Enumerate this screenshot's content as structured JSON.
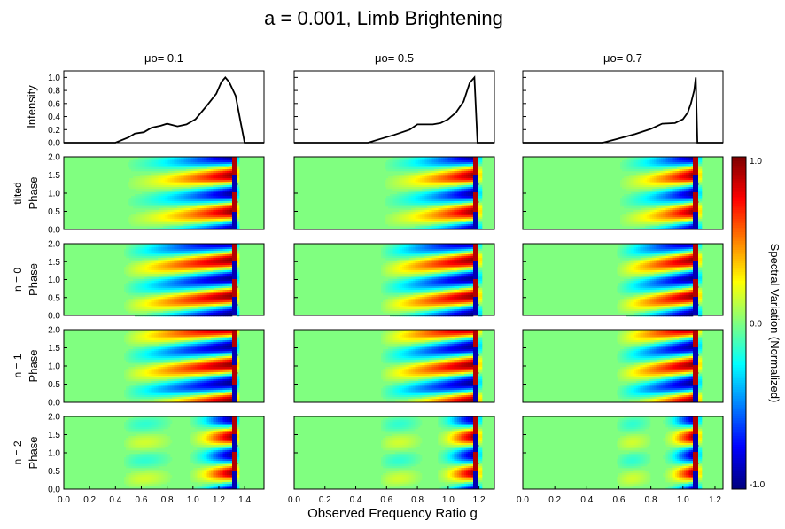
{
  "chart_data": {
    "type": "heatmap",
    "title": "a = 0.001, Limb Brightening",
    "xlabel": "Observed Frequency Ratio g",
    "colorbar": {
      "label": "Spectral Variation (Normalized)",
      "ticks": [
        "1.0",
        "0.0",
        "-1.0"
      ],
      "colormap": "jet",
      "range": [
        -1.0,
        1.0
      ]
    },
    "columns": [
      {
        "title": "μo= 0.1",
        "xlim": [
          0.0,
          1.55
        ],
        "xticks": [
          "0.0",
          "0.2",
          "0.4",
          "0.6",
          "0.8",
          "1.0",
          "1.2",
          "1.4"
        ],
        "intensity": [
          [
            0.0,
            0.0
          ],
          [
            0.4,
            0.0
          ],
          [
            0.5,
            0.08
          ],
          [
            0.55,
            0.14
          ],
          [
            0.62,
            0.16
          ],
          [
            0.68,
            0.23
          ],
          [
            0.75,
            0.26
          ],
          [
            0.8,
            0.29
          ],
          [
            0.88,
            0.25
          ],
          [
            0.95,
            0.28
          ],
          [
            1.02,
            0.36
          ],
          [
            1.1,
            0.55
          ],
          [
            1.18,
            0.75
          ],
          [
            1.22,
            0.93
          ],
          [
            1.25,
            1.0
          ],
          [
            1.28,
            0.93
          ],
          [
            1.33,
            0.72
          ],
          [
            1.37,
            0.3
          ],
          [
            1.4,
            0.0
          ],
          [
            1.55,
            0.0
          ]
        ],
        "edge": 1.32,
        "start": 0.45
      },
      {
        "title": "μo= 0.5",
        "xlim": [
          0.0,
          1.3
        ],
        "xticks": [
          "0.0",
          "0.2",
          "0.4",
          "0.6",
          "0.8",
          "1.0",
          "1.2"
        ],
        "intensity": [
          [
            0.0,
            0.0
          ],
          [
            0.48,
            0.0
          ],
          [
            0.55,
            0.05
          ],
          [
            0.65,
            0.12
          ],
          [
            0.75,
            0.2
          ],
          [
            0.8,
            0.28
          ],
          [
            0.9,
            0.28
          ],
          [
            0.95,
            0.3
          ],
          [
            1.0,
            0.36
          ],
          [
            1.05,
            0.46
          ],
          [
            1.1,
            0.63
          ],
          [
            1.14,
            0.92
          ],
          [
            1.17,
            1.0
          ],
          [
            1.19,
            0.0
          ],
          [
            1.3,
            0.0
          ]
        ],
        "edge": 1.18,
        "start": 0.55
      },
      {
        "title": "μo= 0.7",
        "xlim": [
          0.0,
          1.25
        ],
        "xticks": [
          "0.0",
          "0.2",
          "0.4",
          "0.6",
          "0.8",
          "1.0",
          "1.2"
        ],
        "intensity": [
          [
            0.0,
            0.0
          ],
          [
            0.5,
            0.0
          ],
          [
            0.58,
            0.05
          ],
          [
            0.7,
            0.13
          ],
          [
            0.8,
            0.21
          ],
          [
            0.87,
            0.29
          ],
          [
            0.95,
            0.3
          ],
          [
            1.0,
            0.36
          ],
          [
            1.03,
            0.46
          ],
          [
            1.05,
            0.6
          ],
          [
            1.07,
            0.8
          ],
          [
            1.08,
            1.0
          ],
          [
            1.09,
            0.0
          ],
          [
            1.25,
            0.0
          ]
        ],
        "edge": 1.08,
        "start": 0.58
      }
    ],
    "rows": [
      {
        "mode": "tilted",
        "ylabel": "Phase",
        "ylim": [
          0.0,
          2.0
        ]
      },
      {
        "mode": "n = 0",
        "ylabel": "Phase",
        "ylim": [
          0.0,
          2.0
        ]
      },
      {
        "mode": "n = 1",
        "ylabel": "Phase",
        "ylim": [
          0.0,
          2.0
        ]
      },
      {
        "mode": "n = 2",
        "ylabel": "Phase",
        "ylim": [
          0.0,
          2.0
        ]
      }
    ],
    "intensity_axis": {
      "ylabel": "Intensity",
      "ylim": [
        0.0,
        1.1
      ],
      "yticks": [
        "0.0",
        "0.2",
        "0.4",
        "0.6",
        "0.8",
        "1.0"
      ]
    },
    "phase_yticks": [
      "0.0",
      "0.5",
      "1.0",
      "1.5",
      "2.0"
    ]
  }
}
